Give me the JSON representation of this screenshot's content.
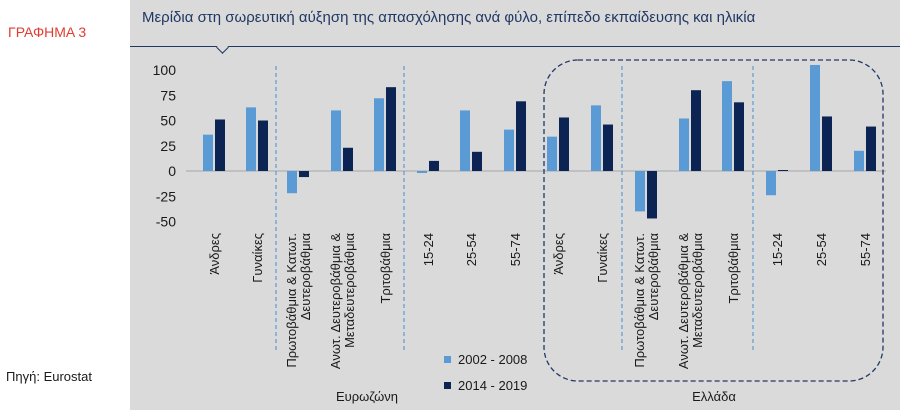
{
  "labels": {
    "chart_number": "ΓΡΑΦΗΜΑ 3",
    "source": "Πηγή: Eurostat"
  },
  "colors": {
    "series_2002_2008": "#5b9bd5",
    "series_2014_2019": "#0c2454",
    "panel_bg": "#dadada",
    "title": "#1f3864",
    "accent_red": "#e03c31",
    "divider": "#5b9bd5"
  },
  "chart_data": {
    "type": "bar",
    "title": "Μερίδια στη σωρευτική αύξηση της απασχόλησης ανά φύλο, επίπεδο εκπαίδευσης και ηλικία",
    "ylim": [
      -50,
      110
    ],
    "yticks": [
      100,
      75,
      50,
      25,
      0,
      -25,
      -50
    ],
    "ytick_labels": [
      "100",
      "75",
      "50",
      "25",
      "0",
      "-25",
      "-50"
    ],
    "grid": false,
    "legend": {
      "position": "bottom-center",
      "entries": [
        "2002 - 2008",
        "2014 - 2019"
      ]
    },
    "groups": [
      {
        "name": "Ευρωζώνη",
        "categories": [
          "Άνδρες",
          "Γυναίκες",
          "Πρωτοβάθμια & Κατωτ. Δευτεροβάθμια",
          "Ανωτ. Δευτεροβάθμια & Μεταδευτεροβάθμια",
          "Τριτοβάθμια",
          "15-24",
          "25-54",
          "55-74"
        ]
      },
      {
        "name": "Ελλάδα",
        "categories": [
          "Άνδρες",
          "Γυναίκες",
          "Πρωτοβάθμια & Κατωτ. Δευτεροβάθμια",
          "Ανωτ. Δευτεροβάθμια & Μεταδευτεροβάθμια",
          "Τριτοβάθμια",
          "15-24",
          "25-54",
          "55-74"
        ]
      }
    ],
    "category_labels": [
      [
        "Άνδρες"
      ],
      [
        "Γυναίκες"
      ],
      [
        "Πρωτοβάθμια  & Κατωτ.",
        "Δευτεροβάθμια"
      ],
      [
        "Ανωτ. Δευτεροβάθμια  &",
        "Μεταδευτεροβάθμια"
      ],
      [
        "Τριτοβάθμια"
      ],
      [
        "15-24"
      ],
      [
        "25-54"
      ],
      [
        "55-74"
      ],
      [
        "Άνδρες"
      ],
      [
        "Γυναίκες"
      ],
      [
        "Πρωτοβάθμια  & Κατωτ.",
        "Δευτεροβάθμια"
      ],
      [
        "Ανωτ. Δευτεροβάθμια  &",
        "Μεταδευτεροβάθμια"
      ],
      [
        "Τριτοβάθμια"
      ],
      [
        "15-24"
      ],
      [
        "25-54"
      ],
      [
        "55-74"
      ]
    ],
    "series": [
      {
        "name": "2002 - 2008",
        "values": [
          36,
          63,
          -22,
          60,
          72,
          -2,
          60,
          41,
          34,
          65,
          -40,
          52,
          89,
          -24,
          105,
          20
        ]
      },
      {
        "name": "2014 - 2019",
        "values": [
          51,
          50,
          -6,
          23,
          83,
          10,
          19,
          69,
          53,
          46,
          -47,
          80,
          68,
          1,
          54,
          44
        ]
      }
    ]
  }
}
